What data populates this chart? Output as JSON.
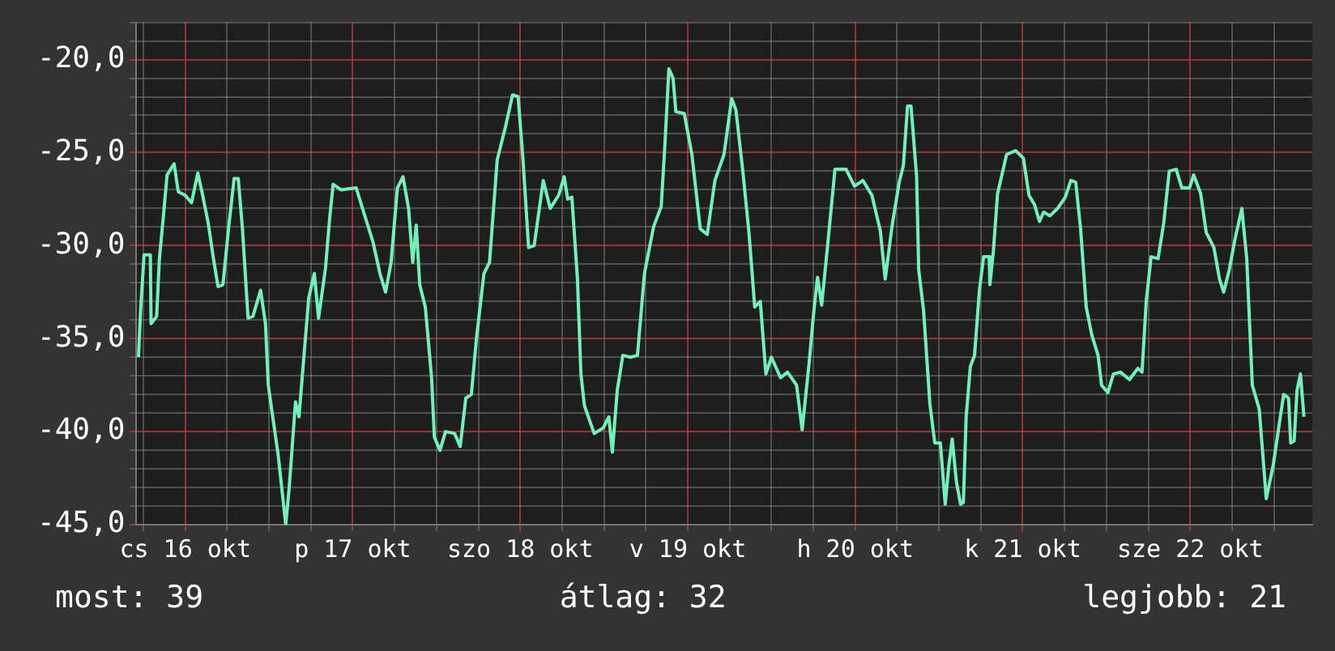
{
  "chart_data": {
    "type": "line",
    "color": "#72f0b8",
    "marker": "none",
    "grid": true,
    "legend": false,
    "x": [
      "--10-16T05:18",
      "--10-16T05:36",
      "--10-16T06:06",
      "--10-16T07:00",
      "--10-16T07:06",
      "--10-16T07:54",
      "--10-16T08:18",
      "--10-16T08:54",
      "--10-16T09:24",
      "--10-16T10:24",
      "--10-16T11:00",
      "--10-16T12:00",
      "--10-16T12:54",
      "--10-16T13:48",
      "--10-16T14:30",
      "--10-16T15:18",
      "--10-16T16:00",
      "--10-16T16:42",
      "--10-16T17:24",
      "--10-16T18:12",
      "--10-16T19:00",
      "--10-16T19:36",
      "--10-16T20:12",
      "--10-16T21:00",
      "--10-16T21:42",
      "--10-16T22:48",
      "--10-16T23:30",
      "--10-16T23:54",
      "--10-17T00:30",
      "--10-17T01:18",
      "--10-17T02:24",
      "--10-17T02:54",
      "--10-17T03:48",
      "--10-17T04:18",
      "--10-17T04:48",
      "--10-17T05:42",
      "--10-17T06:30",
      "--10-17T07:06",
      "--10-17T08:06",
      "--10-17T08:42",
      "--10-17T09:12",
      "--10-17T10:18",
      "--10-17T12:30",
      "--10-17T13:24",
      "--10-17T14:54",
      "--10-17T15:54",
      "--10-17T16:42",
      "--10-17T17:30",
      "--10-17T18:24",
      "--10-17T19:12",
      "--10-17T20:00",
      "--10-17T20:36",
      "--10-17T21:06",
      "--10-17T21:36",
      "--10-17T22:24",
      "--10-17T23:18",
      "--10-17T23:42",
      "--10-18T00:30",
      "--10-18T01:18",
      "--10-18T02:36",
      "--10-18T03:24",
      "--10-18T04:12",
      "--10-18T05:00",
      "--10-18T05:42",
      "--10-18T06:48",
      "--10-18T07:36",
      "--10-18T08:42",
      "--10-18T09:54",
      "--10-18T10:54",
      "--10-18T11:42",
      "--10-18T12:24",
      "--10-18T13:12",
      "--10-18T14:00",
      "--10-18T15:18",
      "--10-18T16:18",
      "--10-18T17:30",
      "--10-18T18:18",
      "--10-18T18:48",
      "--10-18T19:24",
      "--10-18T20:12",
      "--10-18T20:42",
      "--10-18T21:12",
      "--10-18T22:36",
      "--10-18T23:54",
      "--10-19T00:42",
      "--10-19T01:12",
      "--10-19T01:54",
      "--10-19T02:42",
      "--10-19T03:48",
      "--10-19T04:48",
      "--10-19T05:48",
      "--10-19T07:06",
      "--10-19T08:12",
      "--10-19T08:42",
      "--10-19T09:18",
      "--10-19T09:54",
      "--10-19T10:18",
      "--10-19T11:30",
      "--10-19T12:36",
      "--10-19T13:48",
      "--10-19T14:48",
      "--10-19T15:54",
      "--10-19T17:12",
      "--10-19T18:18",
      "--10-19T18:54",
      "--10-19T19:54",
      "--10-19T20:48",
      "--10-19T21:36",
      "--10-19T22:24",
      "--10-19T23:12",
      "--10-20T00:00",
      "--10-20T01:18",
      "--10-20T02:18",
      "--10-20T03:36",
      "--10-20T04:24",
      "--10-20T05:24",
      "--10-20T06:00",
      "--10-20T06:36",
      "--10-20T07:12",
      "--10-20T08:12",
      "--10-20T09:06",
      "--10-20T10:42",
      "--10-20T11:54",
      "--10-20T13:06",
      "--10-20T14:24",
      "--10-20T15:36",
      "--10-20T16:18",
      "--10-20T17:18",
      "--10-20T18:18",
      "--10-20T18:54",
      "--10-20T19:30",
      "--10-20T20:00",
      "--10-20T20:48",
      "--10-20T21:06",
      "--10-20T21:48",
      "--10-20T22:42",
      "--10-20T23:24",
      "--10-21T00:12",
      "--10-21T00:54",
      "--10-21T01:24",
      "--10-21T01:54",
      "--10-21T02:30",
      "--10-21T03:06",
      "--10-21T03:30",
      "--10-21T03:54",
      "--10-21T04:30",
      "--10-21T05:06",
      "--10-21T05:48",
      "--10-21T06:24",
      "--10-21T07:12",
      "--10-21T07:18",
      "--10-21T07:48",
      "--10-21T08:24",
      "--10-21T09:42",
      "--10-21T11:00",
      "--10-21T12:06",
      "--10-21T12:54",
      "--10-21T13:42",
      "--10-21T14:24",
      "--10-21T15:00",
      "--10-21T15:54",
      "--10-21T17:00",
      "--10-21T18:06",
      "--10-21T18:54",
      "--10-21T19:36",
      "--10-21T20:18",
      "--10-21T21:06",
      "--10-21T21:54",
      "--10-21T22:48",
      "--10-21T23:18",
      "--10-22T00:12",
      "--10-22T01:00",
      "--10-22T02:00",
      "--10-22T03:18",
      "--10-22T04:30",
      "--10-22T05:06",
      "--10-22T05:42",
      "--10-22T06:24",
      "--10-22T07:24",
      "--10-22T08:12",
      "--10-22T09:00",
      "--10-22T10:00",
      "--10-22T10:48",
      "--10-22T11:54",
      "--10-22T12:30",
      "--10-22T13:30",
      "--10-22T14:18",
      "--10-22T15:24",
      "--10-22T16:12",
      "--10-22T16:48",
      "--10-22T17:36",
      "--10-22T18:24",
      "--10-22T19:24",
      "--10-22T20:06",
      "--10-22T20:54",
      "--10-22T21:54",
      "--10-22T22:54",
      "--10-22T23:54",
      "--10-23T00:48",
      "--10-23T01:24",
      "--10-23T02:06",
      "--10-23T02:24",
      "--10-23T02:54",
      "--10-23T03:18",
      "--10-23T03:48",
      "--10-23T04:18"
    ],
    "values": [
      -36.0,
      -33.5,
      -30.5,
      -30.5,
      -34.2,
      -33.8,
      -30.7,
      -28.3,
      -26.2,
      -25.6,
      -27.1,
      -27.3,
      -27.7,
      -26.1,
      -27.3,
      -28.8,
      -30.6,
      -32.2,
      -32.1,
      -29.1,
      -26.4,
      -26.4,
      -29.1,
      -33.9,
      -33.8,
      -32.4,
      -34.2,
      -37.5,
      -39.1,
      -41.2,
      -45.0,
      -43.0,
      -38.4,
      -39.2,
      -36.9,
      -32.8,
      -31.5,
      -33.9,
      -31.2,
      -28.5,
      -26.7,
      -27.0,
      -26.9,
      -28.0,
      -29.8,
      -31.5,
      -32.5,
      -30.9,
      -26.9,
      -26.3,
      -28.0,
      -30.9,
      -28.9,
      -32.1,
      -33.3,
      -37.1,
      -40.3,
      -41.0,
      -40.0,
      -40.1,
      -40.8,
      -38.2,
      -38.0,
      -35.1,
      -31.5,
      -30.9,
      -25.4,
      -23.6,
      -21.9,
      -22.0,
      -25.4,
      -30.1,
      -30.0,
      -26.5,
      -28.0,
      -27.3,
      -26.3,
      -27.5,
      -27.4,
      -31.8,
      -36.9,
      -38.6,
      -40.1,
      -39.8,
      -39.2,
      -41.1,
      -37.8,
      -35.9,
      -36.0,
      -35.9,
      -31.5,
      -29.0,
      -27.9,
      -24.8,
      -20.5,
      -21.0,
      -22.8,
      -22.9,
      -25.1,
      -29.1,
      -29.4,
      -26.5,
      -25.1,
      -22.1,
      -22.7,
      -26.0,
      -29.4,
      -33.3,
      -33.0,
      -36.9,
      -36.0,
      -37.1,
      -36.8,
      -37.5,
      -39.9,
      -36.3,
      -33.8,
      -31.7,
      -33.2,
      -29.4,
      -25.9,
      -25.9,
      -26.8,
      -26.5,
      -27.3,
      -29.2,
      -31.8,
      -28.9,
      -26.6,
      -25.7,
      -22.5,
      -22.5,
      -26.3,
      -31.3,
      -33.5,
      -38.5,
      -40.6,
      -40.6,
      -43.9,
      -41.9,
      -40.4,
      -42.7,
      -43.9,
      -43.8,
      -39.2,
      -36.5,
      -35.9,
      -32.4,
      -30.6,
      -30.6,
      -32.1,
      -30.3,
      -27.2,
      -25.1,
      -24.9,
      -25.3,
      -27.3,
      -27.8,
      -28.7,
      -28.2,
      -28.4,
      -28.0,
      -27.4,
      -26.5,
      -26.6,
      -29.1,
      -33.3,
      -34.8,
      -35.9,
      -37.5,
      -37.9,
      -36.9,
      -36.8,
      -37.2,
      -36.6,
      -36.8,
      -33.0,
      -30.6,
      -30.7,
      -28.8,
      -26.0,
      -25.9,
      -26.9,
      -26.9,
      -26.2,
      -27.2,
      -29.3,
      -30.1,
      -31.8,
      -32.5,
      -31.3,
      -29.7,
      -28.0,
      -30.7,
      -37.5,
      -38.8,
      -43.6,
      -41.8,
      -39.5,
      -38.0,
      -38.2,
      -40.6,
      -40.5,
      -37.8,
      -36.9,
      -39.2
    ],
    "xlim": [
      "--10-16T05:00",
      "--10-23T05:30"
    ],
    "xticks": [
      {
        "value": "--10-16T06:00",
        "label": null
      },
      {
        "value": "--10-16T12:00",
        "label": "cs 16 okt"
      },
      {
        "value": "--10-16T18:00",
        "label": null
      },
      {
        "value": "--10-17T00:00",
        "label": null
      },
      {
        "value": "--10-17T06:00",
        "label": null
      },
      {
        "value": "--10-17T12:00",
        "label": "p 17 okt"
      },
      {
        "value": "--10-17T18:00",
        "label": null
      },
      {
        "value": "--10-18T00:00",
        "label": null
      },
      {
        "value": "--10-18T06:00",
        "label": null
      },
      {
        "value": "--10-18T12:00",
        "label": "szo 18 okt"
      },
      {
        "value": "--10-18T18:00",
        "label": null
      },
      {
        "value": "--10-19T00:00",
        "label": null
      },
      {
        "value": "--10-19T06:00",
        "label": null
      },
      {
        "value": "--10-19T12:00",
        "label": "v 19 okt"
      },
      {
        "value": "--10-19T18:00",
        "label": null
      },
      {
        "value": "--10-20T00:00",
        "label": null
      },
      {
        "value": "--10-20T06:00",
        "label": null
      },
      {
        "value": "--10-20T12:00",
        "label": "h 20 okt"
      },
      {
        "value": "--10-20T18:00",
        "label": null
      },
      {
        "value": "--10-21T00:00",
        "label": null
      },
      {
        "value": "--10-21T06:00",
        "label": null
      },
      {
        "value": "--10-21T12:00",
        "label": "k 21 okt"
      },
      {
        "value": "--10-21T18:00",
        "label": null
      },
      {
        "value": "--10-22T00:00",
        "label": null
      },
      {
        "value": "--10-22T06:00",
        "label": null
      },
      {
        "value": "--10-22T12:00",
        "label": "sze 22 okt"
      },
      {
        "value": "--10-22T18:00",
        "label": null
      },
      {
        "value": "--10-23T00:00",
        "label": null
      }
    ],
    "ylim": [
      -45,
      -18
    ],
    "yticks": [
      {
        "value": -45,
        "label": "-45,0"
      },
      {
        "value": -44,
        "label": null
      },
      {
        "value": -43,
        "label": null
      },
      {
        "value": -42,
        "label": null
      },
      {
        "value": -41,
        "label": null
      },
      {
        "value": -40,
        "label": "-40,0"
      },
      {
        "value": -39,
        "label": null
      },
      {
        "value": -38,
        "label": null
      },
      {
        "value": -37,
        "label": null
      },
      {
        "value": -36,
        "label": null
      },
      {
        "value": -35,
        "label": "-35,0"
      },
      {
        "value": -34,
        "label": null
      },
      {
        "value": -33,
        "label": null
      },
      {
        "value": -32,
        "label": null
      },
      {
        "value": -31,
        "label": null
      },
      {
        "value": -30,
        "label": "-30,0"
      },
      {
        "value": -29,
        "label": null
      },
      {
        "value": -28,
        "label": null
      },
      {
        "value": -27,
        "label": null
      },
      {
        "value": -26,
        "label": null
      },
      {
        "value": -25,
        "label": "-25,0"
      },
      {
        "value": -24,
        "label": null
      },
      {
        "value": -23,
        "label": null
      },
      {
        "value": -22,
        "label": null
      },
      {
        "value": -21,
        "label": null
      },
      {
        "value": -20,
        "label": "-20,0"
      },
      {
        "value": -19,
        "label": null
      },
      {
        "value": -18,
        "label": null
      }
    ],
    "annotations": [
      "most: 39",
      "átlag: 32",
      "legjobb: 21"
    ]
  }
}
